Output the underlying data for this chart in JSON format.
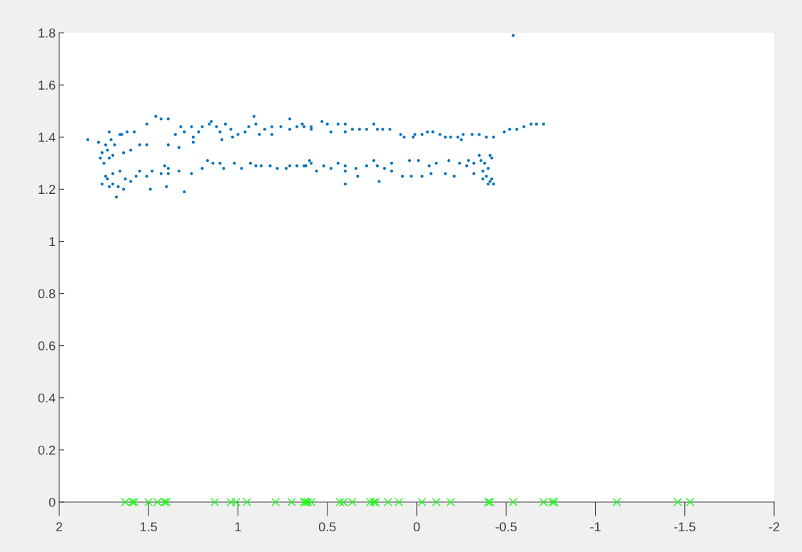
{
  "chart_data": {
    "type": "scatter",
    "xlim": [
      2,
      -2
    ],
    "ylim": [
      0,
      1.8
    ],
    "xticks": [
      2,
      1.5,
      1,
      0.5,
      0,
      -0.5,
      -1,
      -1.5,
      -2
    ],
    "yticks": [
      0,
      0.2,
      0.4,
      0.6,
      0.8,
      1,
      1.2,
      1.4,
      1.6,
      1.8
    ],
    "grid": false,
    "legend": false,
    "series": [
      {
        "color": "#0072bd",
        "marker": "circle",
        "x": [
          1.84,
          1.72,
          1.46,
          1.43,
          1.39,
          1.51,
          1.58,
          1.62,
          1.66,
          1.65,
          1.55,
          1.51,
          1.39,
          1.33,
          1.6,
          1.64,
          1.35,
          1.32,
          1.3,
          1.26,
          1.25,
          1.25,
          1.22,
          1.2,
          1.16,
          1.15,
          1.12,
          1.1,
          1.09,
          1.07,
          1.04,
          1.03,
          1.0,
          0.96,
          0.94,
          0.91,
          0.9,
          0.88,
          0.85,
          0.81,
          0.81,
          0.76,
          0.71,
          0.71,
          0.67,
          0.64,
          0.59,
          1.78,
          1.76,
          1.71,
          1.73,
          1.77,
          1.7,
          1.74,
          1.76,
          1.73,
          1.7,
          1.66,
          1.63,
          1.72,
          1.68,
          1.64,
          1.6,
          1.57,
          1.55,
          1.51,
          1.49,
          1.48,
          1.43,
          1.41,
          1.39,
          1.4,
          1.39,
          1.33,
          1.3,
          1.26,
          1.2,
          1.17,
          1.14,
          1.1,
          1.08,
          1.02,
          0.98,
          0.93,
          0.9,
          0.87,
          0.82,
          0.78,
          0.73,
          0.71,
          0.67,
          0.63,
          0.6,
          0.63,
          0.59,
          0.53,
          0.5,
          0.48,
          0.44,
          0.4,
          0.4,
          0.36,
          0.32,
          0.28,
          0.24,
          0.22,
          0.19,
          0.15,
          0.09,
          0.07,
          0.02,
          0.01,
          -0.03,
          -0.06,
          -0.09,
          -0.13,
          -0.16,
          -0.19,
          -0.23,
          -0.25,
          -0.26,
          -0.31,
          -0.35,
          -0.39,
          -0.43,
          -0.49,
          -0.52,
          -0.56,
          -0.6,
          -0.64,
          -0.67,
          -0.71,
          0.62,
          0.59,
          0.56,
          0.52,
          0.48,
          0.44,
          0.4,
          0.4,
          0.4,
          0.34,
          0.33,
          0.28,
          0.24,
          0.22,
          0.21,
          0.18,
          0.14,
          0.14,
          0.08,
          0.04,
          0.03,
          -0.01,
          -0.03,
          -0.07,
          -0.08,
          -0.11,
          -0.16,
          -0.18,
          -0.21,
          -0.24,
          -0.28,
          -0.32,
          -0.36,
          -0.41,
          -0.37,
          -0.37,
          -0.4,
          -0.32,
          -0.29,
          -0.35,
          -0.42,
          -0.54,
          1.75,
          1.72,
          1.69,
          1.74,
          1.7,
          1.67,
          -0.38,
          -0.4,
          -0.42,
          -0.39,
          -0.41,
          -0.43
        ],
        "values": [
          1.39,
          1.42,
          1.48,
          1.47,
          1.47,
          1.45,
          1.42,
          1.42,
          1.41,
          1.41,
          1.37,
          1.37,
          1.37,
          1.36,
          1.35,
          1.34,
          1.41,
          1.44,
          1.42,
          1.44,
          1.4,
          1.38,
          1.42,
          1.44,
          1.45,
          1.46,
          1.44,
          1.42,
          1.39,
          1.45,
          1.43,
          1.4,
          1.41,
          1.42,
          1.44,
          1.48,
          1.45,
          1.41,
          1.43,
          1.44,
          1.41,
          1.44,
          1.47,
          1.43,
          1.44,
          1.45,
          1.44,
          1.38,
          1.34,
          1.39,
          1.35,
          1.32,
          1.33,
          1.37,
          1.22,
          1.24,
          1.26,
          1.27,
          1.24,
          1.21,
          1.17,
          1.2,
          1.23,
          1.25,
          1.27,
          1.25,
          1.2,
          1.27,
          1.26,
          1.29,
          1.28,
          1.21,
          1.26,
          1.27,
          1.19,
          1.26,
          1.28,
          1.31,
          1.3,
          1.3,
          1.28,
          1.3,
          1.28,
          1.3,
          1.29,
          1.29,
          1.29,
          1.28,
          1.28,
          1.29,
          1.29,
          1.29,
          1.31,
          1.44,
          1.43,
          1.46,
          1.45,
          1.42,
          1.45,
          1.45,
          1.42,
          1.43,
          1.43,
          1.43,
          1.45,
          1.43,
          1.43,
          1.43,
          1.41,
          1.4,
          1.4,
          1.41,
          1.41,
          1.42,
          1.42,
          1.41,
          1.4,
          1.4,
          1.4,
          1.39,
          1.41,
          1.41,
          1.41,
          1.4,
          1.4,
          1.42,
          1.43,
          1.43,
          1.44,
          1.45,
          1.45,
          1.45,
          1.29,
          1.3,
          1.27,
          1.29,
          1.28,
          1.3,
          1.29,
          1.27,
          1.22,
          1.28,
          1.25,
          1.29,
          1.31,
          1.29,
          1.23,
          1.28,
          1.3,
          1.27,
          1.25,
          1.31,
          1.25,
          1.31,
          1.25,
          1.29,
          1.26,
          1.3,
          1.26,
          1.31,
          1.25,
          1.3,
          1.29,
          1.3,
          1.31,
          1.33,
          1.27,
          1.24,
          1.22,
          1.26,
          1.31,
          1.33,
          1.24,
          1.79,
          1.3,
          1.32,
          1.37,
          1.25,
          1.22,
          1.21,
          1.3,
          1.28,
          1.32,
          1.25,
          1.23,
          1.22
        ]
      },
      {
        "color": "#00ff00",
        "marker": "cross",
        "x": [
          1.63,
          1.59,
          1.58,
          1.5,
          1.45,
          1.41,
          1.4,
          1.13,
          1.04,
          1.01,
          0.95,
          0.79,
          0.7,
          0.63,
          0.62,
          0.61,
          0.59,
          0.43,
          0.41,
          0.36,
          0.26,
          0.24,
          0.23,
          0.16,
          0.1,
          -0.03,
          -0.11,
          -0.19,
          -0.4,
          -0.41,
          -0.54,
          -0.71,
          -0.76,
          -0.77,
          -1.12,
          -1.46,
          -1.53
        ],
        "values": [
          0,
          0,
          0,
          0,
          0,
          0,
          0,
          0,
          0,
          0,
          0,
          0,
          0,
          0,
          0,
          0,
          0,
          0,
          0,
          0,
          0,
          0,
          0,
          0,
          0,
          0,
          0,
          0,
          0,
          0,
          0,
          0,
          0,
          0,
          0,
          0,
          0
        ]
      }
    ]
  }
}
